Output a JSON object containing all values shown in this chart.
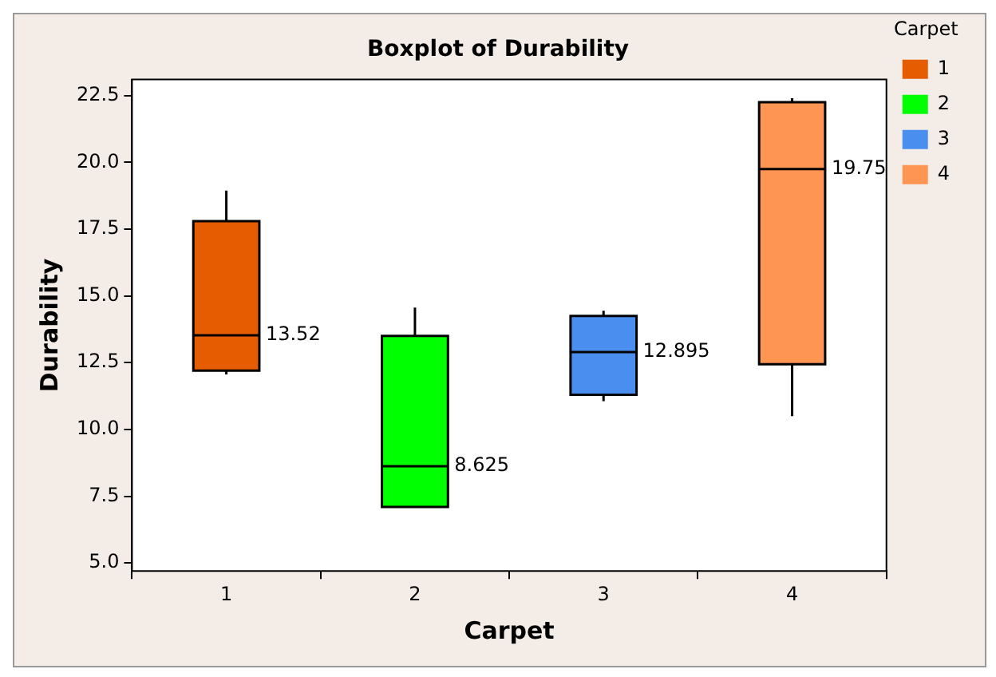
{
  "chart_data": {
    "type": "box",
    "title": "Boxplot of Durability",
    "xlabel": "Carpet",
    "ylabel": "Durability",
    "legend_title": "Carpet",
    "legend": "top right",
    "categories": [
      "1",
      "2",
      "3",
      "4"
    ],
    "series": [
      {
        "name": "1",
        "color": "#e65c00",
        "boxes": [
          {
            "low": 12.06,
            "q1": 12.2,
            "median": 13.52,
            "q3": 17.8,
            "high": 18.94
          },
          null,
          null,
          null
        ]
      },
      {
        "name": "2",
        "color": "#00ff00",
        "boxes": [
          null,
          {
            "low": 7.1,
            "q1": 7.1,
            "median": 8.625,
            "q3": 13.5,
            "high": 14.56
          },
          null,
          null
        ]
      },
      {
        "name": "3",
        "color": "#4a8ff0",
        "boxes": [
          null,
          null,
          {
            "low": 11.06,
            "q1": 11.3,
            "median": 12.895,
            "q3": 14.25,
            "high": 14.44
          },
          null
        ]
      },
      {
        "name": "4",
        "color": "#ff9552",
        "boxes": [
          null,
          null,
          null,
          {
            "low": 10.5,
            "q1": 12.44,
            "median": 19.75,
            "q3": 22.25,
            "high": 22.4
          }
        ]
      }
    ],
    "annotations": [
      {
        "text": "13.52",
        "x": "1",
        "y": 13.52
      },
      {
        "text": "8.625",
        "x": "2",
        "y": 8.625
      },
      {
        "text": "12.895",
        "x": "3",
        "y": 12.895
      },
      {
        "text": "19.75",
        "x": "4",
        "y": 19.75
      }
    ],
    "ylim": [
      4.7,
      23.1
    ],
    "yticks": [
      {
        "value": 5,
        "label": "5.0"
      },
      7.5,
      {
        "value": 10,
        "label": "10.0"
      },
      12.5,
      {
        "value": 15,
        "label": "15.0"
      },
      17.5,
      {
        "value": 20,
        "label": "20.0"
      },
      22.5
    ]
  }
}
